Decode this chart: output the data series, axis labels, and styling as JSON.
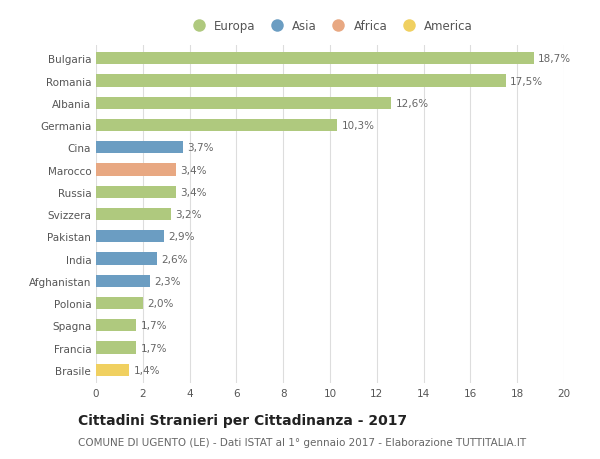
{
  "categories": [
    "Bulgaria",
    "Romania",
    "Albania",
    "Germania",
    "Cina",
    "Marocco",
    "Russia",
    "Svizzera",
    "Pakistan",
    "India",
    "Afghanistan",
    "Polonia",
    "Spagna",
    "Francia",
    "Brasile"
  ],
  "values": [
    18.7,
    17.5,
    12.6,
    10.3,
    3.7,
    3.4,
    3.4,
    3.2,
    2.9,
    2.6,
    2.3,
    2.0,
    1.7,
    1.7,
    1.4
  ],
  "labels": [
    "18,7%",
    "17,5%",
    "12,6%",
    "10,3%",
    "3,7%",
    "3,4%",
    "3,4%",
    "3,2%",
    "2,9%",
    "2,6%",
    "2,3%",
    "2,0%",
    "1,7%",
    "1,7%",
    "1,4%"
  ],
  "continents": [
    "Europa",
    "Europa",
    "Europa",
    "Europa",
    "Asia",
    "Africa",
    "Europa",
    "Europa",
    "Asia",
    "Asia",
    "Asia",
    "Europa",
    "Europa",
    "Europa",
    "America"
  ],
  "colors": {
    "Europa": "#afc97e",
    "Asia": "#6b9dc2",
    "Africa": "#e8a882",
    "America": "#f0d060"
  },
  "xlim": [
    0,
    20
  ],
  "xticks": [
    0,
    2,
    4,
    6,
    8,
    10,
    12,
    14,
    16,
    18,
    20
  ],
  "title": "Cittadini Stranieri per Cittadinanza - 2017",
  "subtitle": "COMUNE DI UGENTO (LE) - Dati ISTAT al 1° gennaio 2017 - Elaborazione TUTTITALIA.IT",
  "background_color": "#ffffff",
  "grid_color": "#dddddd",
  "bar_height": 0.55,
  "title_fontsize": 10,
  "subtitle_fontsize": 7.5,
  "label_fontsize": 7.5,
  "tick_fontsize": 7.5,
  "legend_fontsize": 8.5
}
